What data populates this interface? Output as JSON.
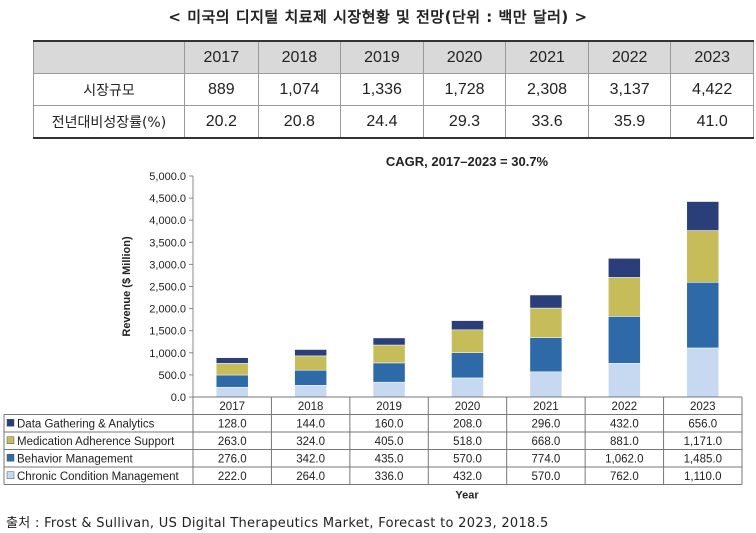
{
  "page_title": "< 미국의 디지털 치료제 시장현황 및 전망(단위 : 백만 달러) >",
  "market_table": {
    "years": [
      "2017",
      "2018",
      "2019",
      "2020",
      "2021",
      "2022",
      "2023"
    ],
    "rows": [
      {
        "label": "시장규모",
        "values": [
          "889",
          "1,074",
          "1,336",
          "1,728",
          "2,308",
          "3,137",
          "4,422"
        ]
      },
      {
        "label": "전년대비성장률(%)",
        "values": [
          "20.2",
          "20.8",
          "24.4",
          "29.3",
          "33.6",
          "35.9",
          "41.0"
        ]
      }
    ]
  },
  "chart_data": {
    "type": "bar",
    "stacked": true,
    "title": "CAGR, 2017–2023 = 30.7%",
    "xlabel": "Year",
    "ylabel": "Revenue ($ Million)",
    "ylim": [
      0,
      5000
    ],
    "yticks": [
      "0.0",
      "500.0",
      "1,000.0",
      "1,500.0",
      "2,000.0",
      "2,500.0",
      "3,000.0",
      "3,500.0",
      "4,000.0",
      "4,500.0",
      "5,000.0"
    ],
    "ytick_values": [
      0,
      500,
      1000,
      1500,
      2000,
      2500,
      3000,
      3500,
      4000,
      4500,
      5000
    ],
    "categories": [
      "2017",
      "2018",
      "2019",
      "2020",
      "2021",
      "2022",
      "2023"
    ],
    "series": [
      {
        "name": "Chronic Condition Management",
        "color": "#c6d9f0",
        "values": [
          222.0,
          264.0,
          336.0,
          432.0,
          570.0,
          762.0,
          1110.0
        ],
        "labels": [
          "222.0",
          "264.0",
          "336.0",
          "432.0",
          "570.0",
          "762.0",
          "1,110.0"
        ]
      },
      {
        "name": "Behavior Management",
        "color": "#2e6aa8",
        "values": [
          276.0,
          342.0,
          435.0,
          570.0,
          774.0,
          1062.0,
          1485.0
        ],
        "labels": [
          "276.0",
          "342.0",
          "435.0",
          "570.0",
          "774.0",
          "1,062.0",
          "1,485.0"
        ]
      },
      {
        "name": "Medication Adherence Support",
        "color": "#c7bc5a",
        "values": [
          263.0,
          324.0,
          405.0,
          518.0,
          668.0,
          881.0,
          1171.0
        ],
        "labels": [
          "263.0",
          "324.0",
          "405.0",
          "518.0",
          "668.0",
          "881.0",
          "1,171.0"
        ]
      },
      {
        "name": "Data Gathering & Analytics",
        "color": "#2a3f7a",
        "values": [
          128.0,
          144.0,
          160.0,
          208.0,
          296.0,
          432.0,
          656.0
        ],
        "labels": [
          "128.0",
          "144.0",
          "160.0",
          "208.0",
          "296.0",
          "432.0",
          "656.0"
        ]
      }
    ],
    "table_row_order": [
      3,
      2,
      1,
      0
    ],
    "grid": false,
    "legend_placement": "data-table"
  },
  "source_text": "출처 : Frost & Sullivan, US Digital Therapeutics Market, Forecast to 2023, 2018.5"
}
